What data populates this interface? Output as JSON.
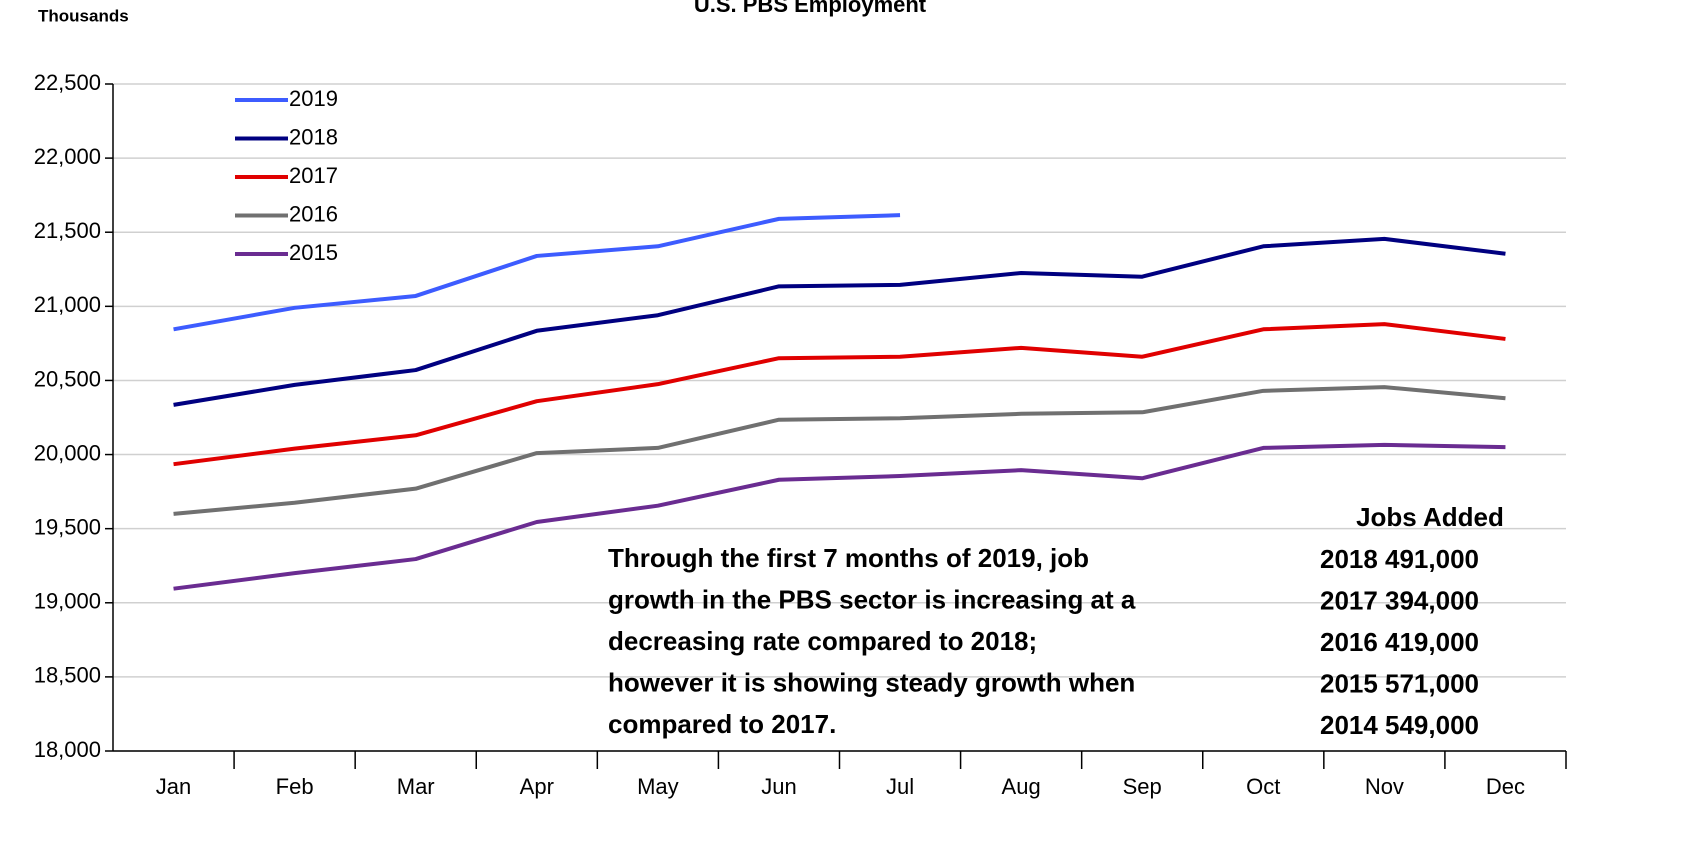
{
  "chart_data": {
    "type": "line",
    "title": "U.S. PBS Employment",
    "y_label": "Thousands",
    "categories": [
      "Jan",
      "Feb",
      "Mar",
      "Apr",
      "May",
      "Jun",
      "Jul",
      "Aug",
      "Sep",
      "Oct",
      "Nov",
      "Dec"
    ],
    "series": [
      {
        "name": "2019",
        "color": "#3d5cff",
        "values": [
          20845,
          20990,
          21070,
          21340,
          21405,
          21590,
          21615,
          null,
          null,
          null,
          null,
          null
        ]
      },
      {
        "name": "2018",
        "color": "#000080",
        "values": [
          20335,
          20470,
          20570,
          20835,
          20940,
          21135,
          21145,
          21225,
          21200,
          21405,
          21455,
          21355
        ]
      },
      {
        "name": "2017",
        "color": "#e00000",
        "values": [
          19935,
          20040,
          20130,
          20360,
          20475,
          20650,
          20660,
          20720,
          20660,
          20845,
          20880,
          20780
        ]
      },
      {
        "name": "2016",
        "color": "#707070",
        "values": [
          19600,
          19675,
          19770,
          20010,
          20045,
          20235,
          20245,
          20275,
          20285,
          20430,
          20455,
          20380
        ]
      },
      {
        "name": "2015",
        "color": "#6a2c91",
        "values": [
          19095,
          19200,
          19295,
          19545,
          19655,
          19830,
          19855,
          19895,
          19840,
          20045,
          20065,
          20050
        ]
      }
    ],
    "ylim": [
      18000,
      22500
    ],
    "yticks": [
      {
        "value": 18000,
        "label": "18,000"
      },
      {
        "value": 18500,
        "label": "18,500"
      },
      {
        "value": 19000,
        "label": "19,000"
      },
      {
        "value": 19500,
        "label": "19,500"
      },
      {
        "value": 20000,
        "label": "20,000"
      },
      {
        "value": 20500,
        "label": "20,500"
      },
      {
        "value": 21000,
        "label": "21,000"
      },
      {
        "value": 21500,
        "label": "21,500"
      },
      {
        "value": 22000,
        "label": "22,000"
      },
      {
        "value": 22500,
        "label": "22,500"
      }
    ],
    "grid": true,
    "annotation": [
      "Through the first 7 months of 2019, job",
      "growth in the PBS sector is increasing at a",
      "decreasing rate compared to 2018;",
      "however it is showing steady growth when",
      "compared to 2017."
    ],
    "jobs_added": {
      "title": "Jobs Added",
      "rows": [
        [
          "2018",
          "491,000"
        ],
        [
          "2017",
          "394,000"
        ],
        [
          "2016",
          "419,000"
        ],
        [
          "2015",
          "571,000"
        ],
        [
          "2014",
          "549,000"
        ]
      ]
    }
  }
}
